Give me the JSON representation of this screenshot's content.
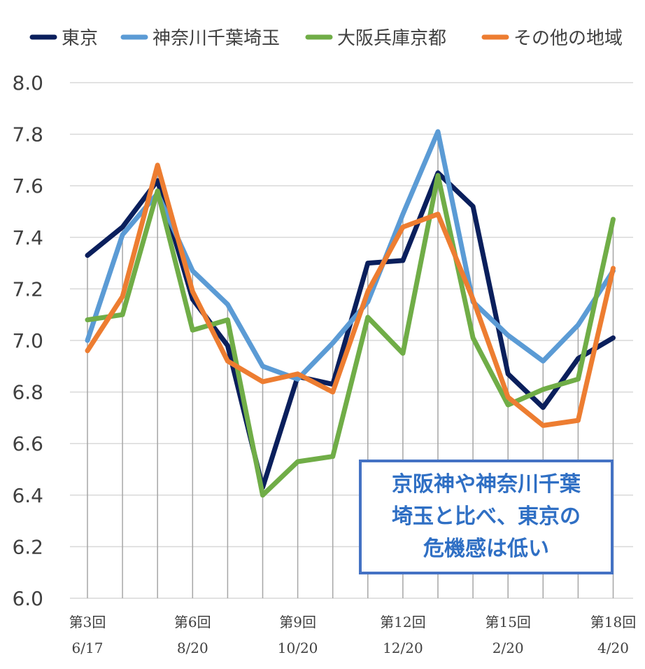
{
  "chart_data": {
    "type": "line",
    "x_labels": [
      "第3回",
      "",
      "",
      "第6回",
      "",
      "",
      "第9回",
      "",
      "",
      "第12回",
      "",
      "",
      "第15回",
      "",
      "",
      "第18回"
    ],
    "x_sublabels": [
      "6/17",
      "",
      "",
      "8/20",
      "",
      "",
      "10/20",
      "",
      "",
      "12/20",
      "",
      "",
      "2/20",
      "",
      "",
      "4/20"
    ],
    "ylim": [
      6.0,
      8.0
    ],
    "yticks": [
      "6.0",
      "6.2",
      "6.4",
      "6.6",
      "6.8",
      "7.0",
      "7.2",
      "7.4",
      "7.6",
      "7.8",
      "8.0"
    ],
    "grid": true,
    "legend_position": "top",
    "series": [
      {
        "name": "東京",
        "color": "#0a1f5c",
        "values": [
          7.33,
          7.44,
          7.62,
          7.16,
          6.98,
          6.43,
          6.86,
          6.83,
          7.3,
          7.31,
          7.65,
          7.52,
          6.87,
          6.74,
          6.93,
          7.01
        ]
      },
      {
        "name": "神奈川千葉埼玉",
        "color": "#5b9bd5",
        "values": [
          7.0,
          7.41,
          7.57,
          7.27,
          7.14,
          6.9,
          6.85,
          6.99,
          7.15,
          7.49,
          7.81,
          7.15,
          7.02,
          6.92,
          7.06,
          7.27
        ]
      },
      {
        "name": "大阪兵庫京都",
        "color": "#70ad47",
        "values": [
          7.08,
          7.1,
          7.58,
          7.04,
          7.08,
          6.4,
          6.53,
          6.55,
          7.09,
          6.95,
          7.64,
          7.01,
          6.75,
          6.81,
          6.85,
          7.47
        ]
      },
      {
        "name": "その他の地域",
        "color": "#ed7d31",
        "values": [
          6.96,
          7.17,
          7.68,
          7.19,
          6.92,
          6.84,
          6.87,
          6.8,
          7.19,
          7.44,
          7.49,
          7.16,
          6.78,
          6.67,
          6.69,
          7.28
        ]
      }
    ]
  },
  "callout": {
    "lines": [
      "京阪神や神奈川千葉",
      "埼玉と比べ、東京の",
      "危機感は低い"
    ]
  }
}
